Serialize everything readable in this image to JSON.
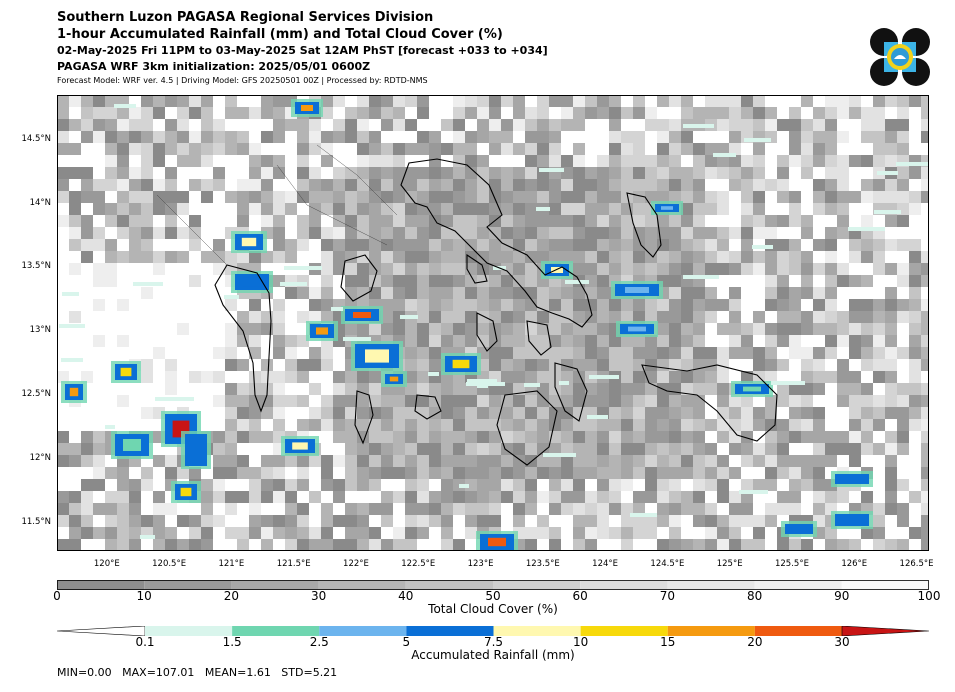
{
  "header": {
    "title_line1": "Southern Luzon PAGASA Regional Services Division",
    "title_line2": "1-hour Accumulated Rainfall (mm) and Total Cloud Cover (%)",
    "title_line3": "02-May-2025 Fri 11PM to 03-May-2025 Sat 12AM PhST [forecast +033 to +034]",
    "title_line4": "PAGASA WRF 3km initialization: 2025/05/01 0600Z",
    "credits": "Forecast Model: WRF ver. 4.5 | Driving Model: GFS 20250501 00Z | Processed by: RDTD-NMS"
  },
  "map": {
    "lon_range": [
      119.6,
      126.6
    ],
    "lat_range": [
      11.28,
      14.85
    ],
    "lon_ticks": [
      "120°E",
      "120.5°E",
      "121°E",
      "121.5°E",
      "122°E",
      "122.5°E",
      "123°E",
      "123.5°E",
      "124°E",
      "124.5°E",
      "125°E",
      "125.5°E",
      "126°E",
      "126.5°E"
    ],
    "lon_values": [
      120,
      120.5,
      121,
      121.5,
      122,
      122.5,
      123,
      123.5,
      124,
      124.5,
      125,
      125.5,
      126,
      126.5
    ],
    "lat_ticks": [
      "11.5°N",
      "12°N",
      "12.5°N",
      "13°N",
      "13.5°N",
      "14°N",
      "14.5°N"
    ],
    "lat_values": [
      11.5,
      12,
      12.5,
      13,
      13.5,
      14,
      14.5
    ]
  },
  "cloud_colorbar": {
    "title": "Total Cloud Cover (%)",
    "ticks": [
      "0",
      "10",
      "20",
      "30",
      "40",
      "50",
      "60",
      "70",
      "80",
      "90",
      "100"
    ],
    "colors": [
      "#8e8e8e",
      "#9b9b9b",
      "#a8a8a8",
      "#b5b5b5",
      "#c2c2c2",
      "#cfcfcf",
      "#dcdcdc",
      "#e6e6e6",
      "#f0f0f0",
      "#fafafa"
    ]
  },
  "rain_colorbar": {
    "title": "Accumulated Rainfall (mm)",
    "ticks": [
      "0.1",
      "1.5",
      "2.5",
      "5",
      "7.5",
      "10",
      "15",
      "20",
      "30"
    ],
    "colors": [
      "#d9f5ec",
      "#6fd6b0",
      "#6cb4ee",
      "#0a6fd6",
      "#fff8b0",
      "#f7d90b",
      "#f59a10",
      "#ef5a10",
      "#c81414"
    ]
  },
  "stats": {
    "text": "MIN=0.00   MAX=107.01   MEAN=1.61   STD=5.21"
  }
}
